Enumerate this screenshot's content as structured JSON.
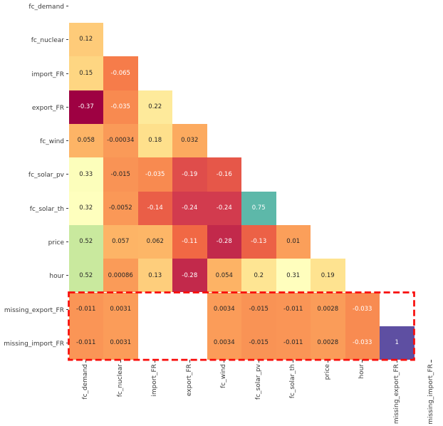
{
  "figure": {
    "background": "#ffffff"
  },
  "chart_data": {
    "type": "heatmap",
    "subtype": "correlation-matrix-lower-triangle",
    "grid": "off",
    "legend": "none",
    "variables": [
      "fc_demand",
      "fc_nuclear",
      "import_FR",
      "export_FR",
      "fc_wind",
      "fc_solar_pv",
      "fc_solar_th",
      "price",
      "hour",
      "missing_export_FR",
      "missing_import_FR"
    ],
    "matrix_lower_triangle": [
      [],
      [
        0.12
      ],
      [
        0.15,
        -0.065
      ],
      [
        -0.37,
        -0.035,
        0.22
      ],
      [
        0.058,
        -0.00034,
        0.18,
        0.032
      ],
      [
        0.33,
        -0.015,
        -0.035,
        -0.19,
        -0.16
      ],
      [
        0.32,
        -0.0052,
        -0.14,
        -0.24,
        -0.24,
        0.75
      ],
      [
        0.52,
        0.057,
        0.062,
        -0.11,
        -0.28,
        -0.13,
        0.01
      ],
      [
        0.52,
        0.00086,
        0.13,
        -0.28,
        0.054,
        0.2,
        0.31,
        0.19
      ],
      [
        -0.011,
        0.0031,
        null,
        null,
        0.0034,
        -0.015,
        -0.011,
        0.0028,
        -0.033
      ],
      [
        -0.011,
        0.0031,
        null,
        null,
        0.0034,
        -0.015,
        -0.011,
        0.0028,
        -0.033,
        1
      ]
    ],
    "masked_region": "upper triangle and diagonal are blank white",
    "blank_nan_cells": [
      [
        9,
        2
      ],
      [
        9,
        3
      ],
      [
        10,
        2
      ],
      [
        10,
        3
      ]
    ],
    "colormap": {
      "name": "Spectral",
      "anchors": [
        "#9e0142",
        "#d53e4f",
        "#f46d43",
        "#fdae61",
        "#fee08b",
        "#ffffbf",
        "#e6f598",
        "#abdda4",
        "#66c2a5",
        "#3288bd",
        "#5e4fa2"
      ],
      "vmin": -0.37,
      "vmax": 1
    },
    "annotation_colors": {
      "on_light": "#262626",
      "on_dark": "#ffffff"
    },
    "tick_color": "#3a3a3a",
    "highlight_box": {
      "description": "red dashed rectangle around the missing_export_FR and missing_import_FR rows",
      "row_start": 9,
      "row_end": 10,
      "col_start": 0,
      "col_end": 9,
      "color": "#f80d0b",
      "line_style": "dashed"
    }
  }
}
